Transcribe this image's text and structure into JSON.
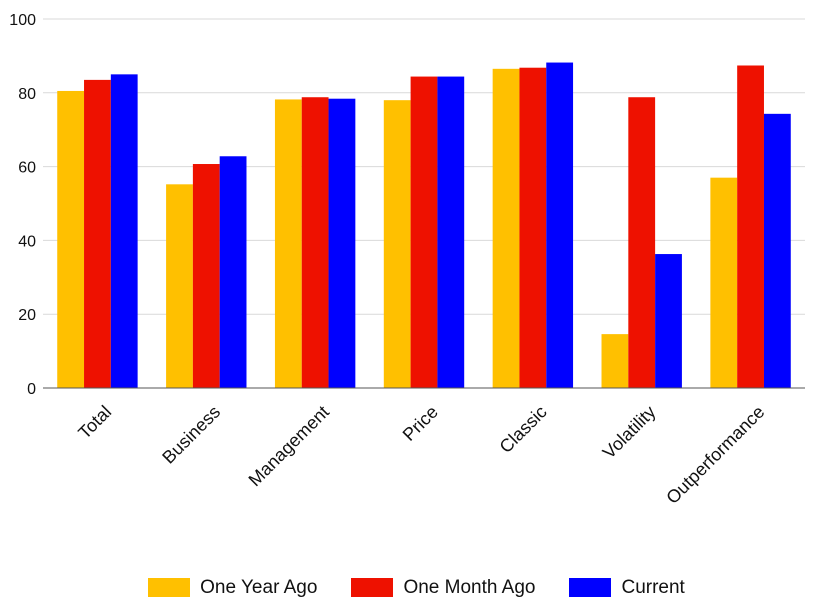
{
  "chart_data": {
    "type": "bar",
    "title": "",
    "xlabel": "",
    "ylabel": "",
    "ylim": [
      0,
      100
    ],
    "yticks": [
      0,
      20,
      40,
      60,
      80,
      100
    ],
    "grid": true,
    "legend_position": "bottom",
    "categories": [
      "Total",
      "Business",
      "Management",
      "Price",
      "Classic",
      "Volatility",
      "Outperformance"
    ],
    "series": [
      {
        "name": "One Year Ago",
        "color": "#FFC000",
        "values": [
          80.5,
          55.2,
          78.2,
          78.0,
          86.5,
          14.6,
          57.0
        ]
      },
      {
        "name": "One Month Ago",
        "color": "#EE1100",
        "values": [
          83.5,
          60.7,
          78.8,
          84.4,
          86.8,
          78.8,
          87.4
        ]
      },
      {
        "name": "Current",
        "color": "#0000FF",
        "values": [
          85.0,
          62.8,
          78.4,
          84.4,
          88.2,
          36.3,
          74.3
        ]
      }
    ]
  }
}
